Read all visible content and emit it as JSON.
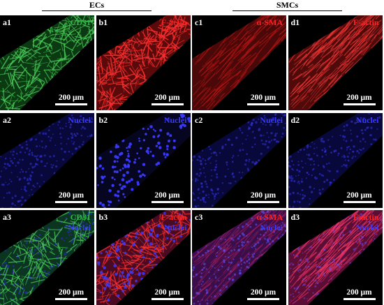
{
  "groups": [
    {
      "label": "ECs"
    },
    {
      "label": "SMCs"
    }
  ],
  "scale_bar": "200 μm",
  "colors": {
    "green": "#2fb84a",
    "red": "#ff2020",
    "blue": "#3a3aff",
    "white": "#ffffff"
  },
  "panels": [
    {
      "id": "a1",
      "stains": [
        {
          "text": "CD31",
          "color": "green"
        }
      ],
      "bg": "green"
    },
    {
      "id": "b1",
      "stains": [
        {
          "text": "F-actin",
          "color": "red"
        }
      ],
      "bg": "red"
    },
    {
      "id": "c1",
      "stains": [
        {
          "text": "α-SMA",
          "color": "red"
        }
      ],
      "bg": "red-dim"
    },
    {
      "id": "d1",
      "stains": [
        {
          "text": "F-actin",
          "color": "red"
        }
      ],
      "bg": "red-streak"
    },
    {
      "id": "a2",
      "stains": [
        {
          "text": "Nuclei",
          "color": "blue"
        }
      ],
      "bg": "blue-dim"
    },
    {
      "id": "b2",
      "stains": [
        {
          "text": "Nuclei",
          "color": "blue"
        }
      ],
      "bg": "blue-dots"
    },
    {
      "id": "c2",
      "stains": [
        {
          "text": "Nuclei",
          "color": "blue"
        }
      ],
      "bg": "blue-dim"
    },
    {
      "id": "d2",
      "stains": [
        {
          "text": "Nuclei",
          "color": "blue"
        }
      ],
      "bg": "blue-dim"
    },
    {
      "id": "a3",
      "stains": [
        {
          "text": "CD31",
          "color": "green"
        },
        {
          "text": "Nuclei",
          "color": "blue"
        }
      ],
      "bg": "green-blue"
    },
    {
      "id": "b3",
      "stains": [
        {
          "text": "F-actin",
          "color": "red"
        },
        {
          "text": "Nuclei",
          "color": "blue"
        }
      ],
      "bg": "red-blue"
    },
    {
      "id": "c3",
      "stains": [
        {
          "text": "α-SMA",
          "color": "red"
        },
        {
          "text": "Nuclei",
          "color": "blue"
        }
      ],
      "bg": "purple"
    },
    {
      "id": "d3",
      "stains": [
        {
          "text": "F-actin",
          "color": "red"
        },
        {
          "text": "Nuclei",
          "color": "blue"
        }
      ],
      "bg": "magenta"
    }
  ]
}
